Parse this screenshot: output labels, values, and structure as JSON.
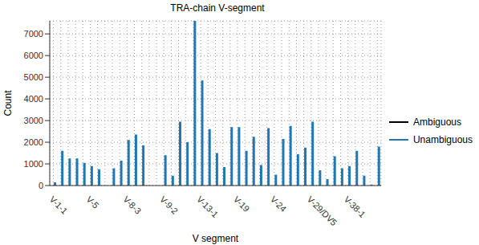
{
  "chart_data": {
    "type": "bar",
    "title": "TRA-chain V-segment",
    "x_label": "V segment",
    "y_label": "Count",
    "categories": [
      "V-1-1",
      null,
      null,
      null,
      null,
      "V-5",
      null,
      null,
      null,
      null,
      "V-8-3",
      null,
      null,
      null,
      null,
      "V-9-2",
      null,
      null,
      null,
      null,
      "V-13-1",
      null,
      null,
      null,
      null,
      "V-19",
      null,
      null,
      null,
      null,
      "V-24",
      null,
      null,
      null,
      null,
      "V-29/DV5",
      null,
      null,
      null,
      null,
      "V-38-1",
      null,
      null,
      null,
      null
    ],
    "series": [
      {
        "name": "Ambiguous",
        "color": "#000000",
        "values": [
          0,
          0,
          0,
          0,
          0,
          0,
          0,
          0,
          0,
          0,
          0,
          0,
          0,
          0,
          0,
          0,
          0,
          0,
          0,
          0,
          0,
          0,
          0,
          0,
          0,
          0,
          0,
          0,
          0,
          0,
          0,
          0,
          0,
          0,
          0,
          0,
          0,
          0,
          0,
          0,
          0,
          0,
          0,
          0,
          0
        ]
      },
      {
        "name": "Unambiguous",
        "color": "#1f78b4",
        "values": [
          150,
          1600,
          1250,
          1250,
          1050,
          900,
          750,
          0,
          800,
          1150,
          2100,
          2350,
          1850,
          0,
          0,
          1400,
          450,
          2950,
          2000,
          7600,
          4850,
          2600,
          1500,
          850,
          2700,
          2700,
          1600,
          2250,
          950,
          2650,
          500,
          2150,
          2750,
          1450,
          1750,
          2950,
          700,
          300,
          1350,
          800,
          900,
          1600,
          450,
          50,
          1800
        ]
      }
    ],
    "ylim": [
      0,
      7600
    ],
    "yticks": [
      0,
      1000,
      2000,
      3000,
      4000,
      5000,
      6000,
      7000
    ],
    "grid": true,
    "legend": "right"
  }
}
